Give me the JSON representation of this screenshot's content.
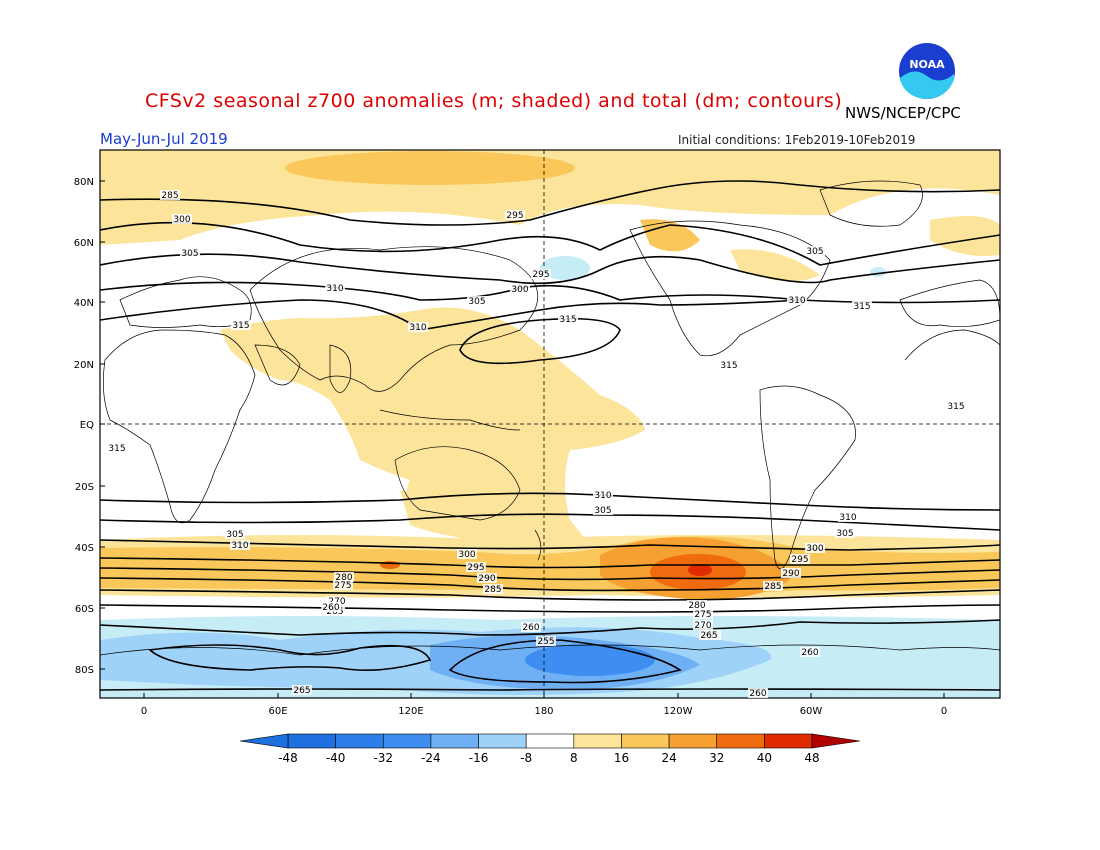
{
  "header": {
    "title": "CFSv2 seasonal z700 anomalies (m; shaded) and total (dm; contours)",
    "season": "May-Jun-Jul 2019",
    "agency": "NWS/NCEP/CPC",
    "initial_conditions": "Initial conditions: 1Feb2019-10Feb2019",
    "logo_text": "NOAA",
    "logo_icon": "noaa-logo-icon"
  },
  "map": {
    "lat_labels": [
      "80N",
      "60N",
      "40N",
      "20N",
      "EQ",
      "20S",
      "40S",
      "60S",
      "80S"
    ],
    "lon_labels": [
      "0",
      "60E",
      "120E",
      "180",
      "120W",
      "60W",
      "0"
    ],
    "contour_labels": [
      "285",
      "300",
      "305",
      "295",
      "300",
      "305",
      "310",
      "315",
      "310",
      "295",
      "305",
      "310",
      "315",
      "315",
      "315",
      "310",
      "305",
      "310",
      "305",
      "300",
      "295",
      "285",
      "290",
      "280",
      "275",
      "270",
      "265",
      "260",
      "260",
      "255",
      "265",
      "260",
      "265",
      "285",
      "290",
      "295",
      "300",
      "305",
      "310",
      "280",
      "275",
      "270",
      "265",
      "260",
      "315",
      "315"
    ],
    "colors": {
      "land_outline": "#000000",
      "neg48": "#1e6fe0",
      "neg32": "#3d8ef0",
      "neg24": "#6fb0f5",
      "neg16": "#9fd2f8",
      "neg8": "#c6ecf6",
      "pos8": "#fce59a",
      "pos16": "#fac85a",
      "pos24": "#f5a030",
      "pos32": "#f06a10",
      "pos40": "#e02a00",
      "pos48": "#b00000"
    }
  },
  "colorbar": {
    "tick_labels": [
      "-48",
      "-40",
      "-32",
      "-24",
      "-16",
      "-8",
      "8",
      "16",
      "24",
      "32",
      "40",
      "48"
    ]
  }
}
